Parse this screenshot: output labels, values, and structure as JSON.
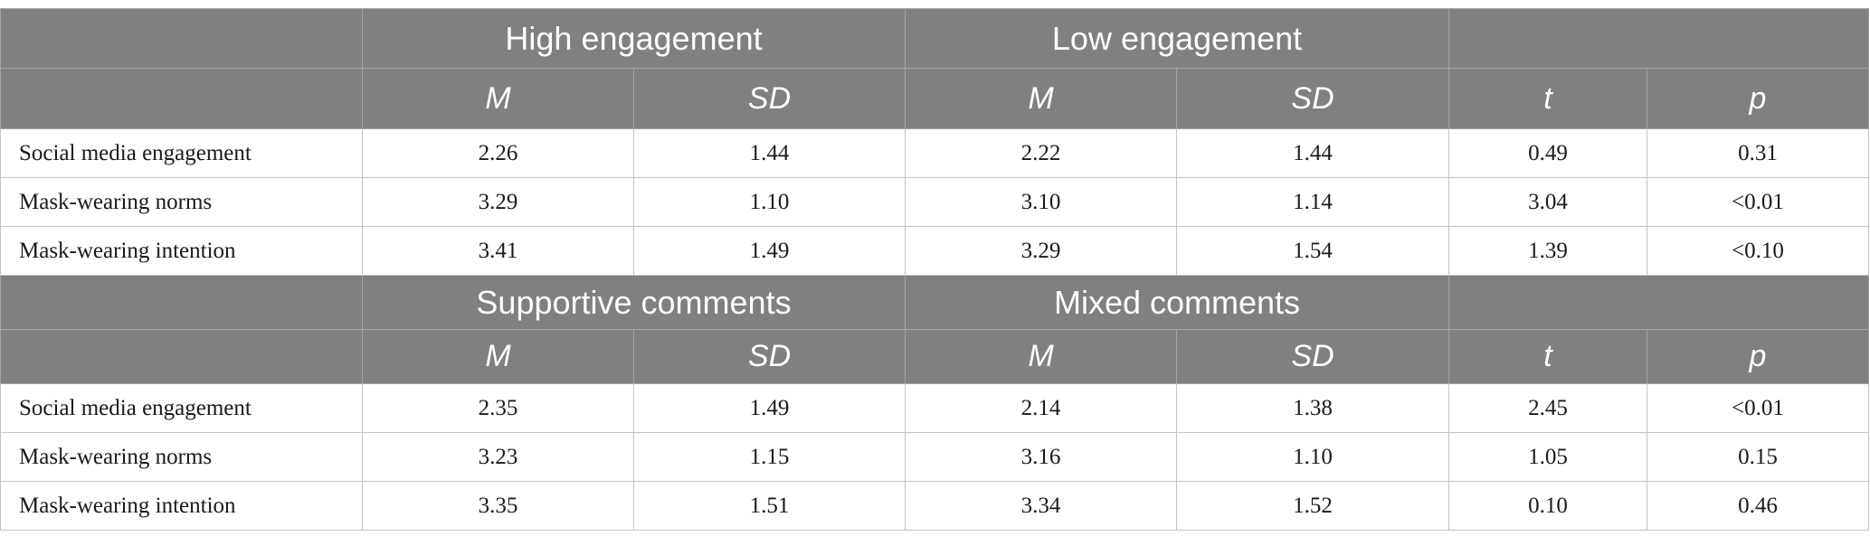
{
  "tables": [
    {
      "groups": [
        "High engagement",
        "Low engagement",
        ""
      ],
      "stats": [
        "M",
        "SD",
        "M",
        "SD",
        "t",
        "p"
      ],
      "rows": [
        {
          "label": "Social media engagement",
          "values": [
            "2.26",
            "1.44",
            "2.22",
            "1.44",
            "0.49",
            "0.31"
          ]
        },
        {
          "label": "Mask-wearing norms",
          "values": [
            "3.29",
            "1.10",
            "3.10",
            "1.14",
            "3.04",
            "<0.01"
          ]
        },
        {
          "label": "Mask-wearing intention",
          "values": [
            "3.41",
            "1.49",
            "3.29",
            "1.54",
            "1.39",
            "<0.10"
          ]
        }
      ]
    },
    {
      "groups": [
        "Supportive comments",
        "Mixed comments",
        ""
      ],
      "stats": [
        "M",
        "SD",
        "M",
        "SD",
        "t",
        "p"
      ],
      "rows": [
        {
          "label": "Social media engagement",
          "values": [
            "2.35",
            "1.49",
            "2.14",
            "1.38",
            "2.45",
            "<0.01"
          ]
        },
        {
          "label": "Mask-wearing norms",
          "values": [
            "3.23",
            "1.15",
            "3.16",
            "1.10",
            "1.05",
            "0.15"
          ]
        },
        {
          "label": "Mask-wearing intention",
          "values": [
            "3.35",
            "1.51",
            "3.34",
            "1.52",
            "0.10",
            "0.46"
          ]
        }
      ]
    }
  ],
  "colors": {
    "header_bg": "#7f807f",
    "header_text": "#ffffff",
    "grid": "#c3c3c3",
    "body_text": "#1a1a1a"
  }
}
